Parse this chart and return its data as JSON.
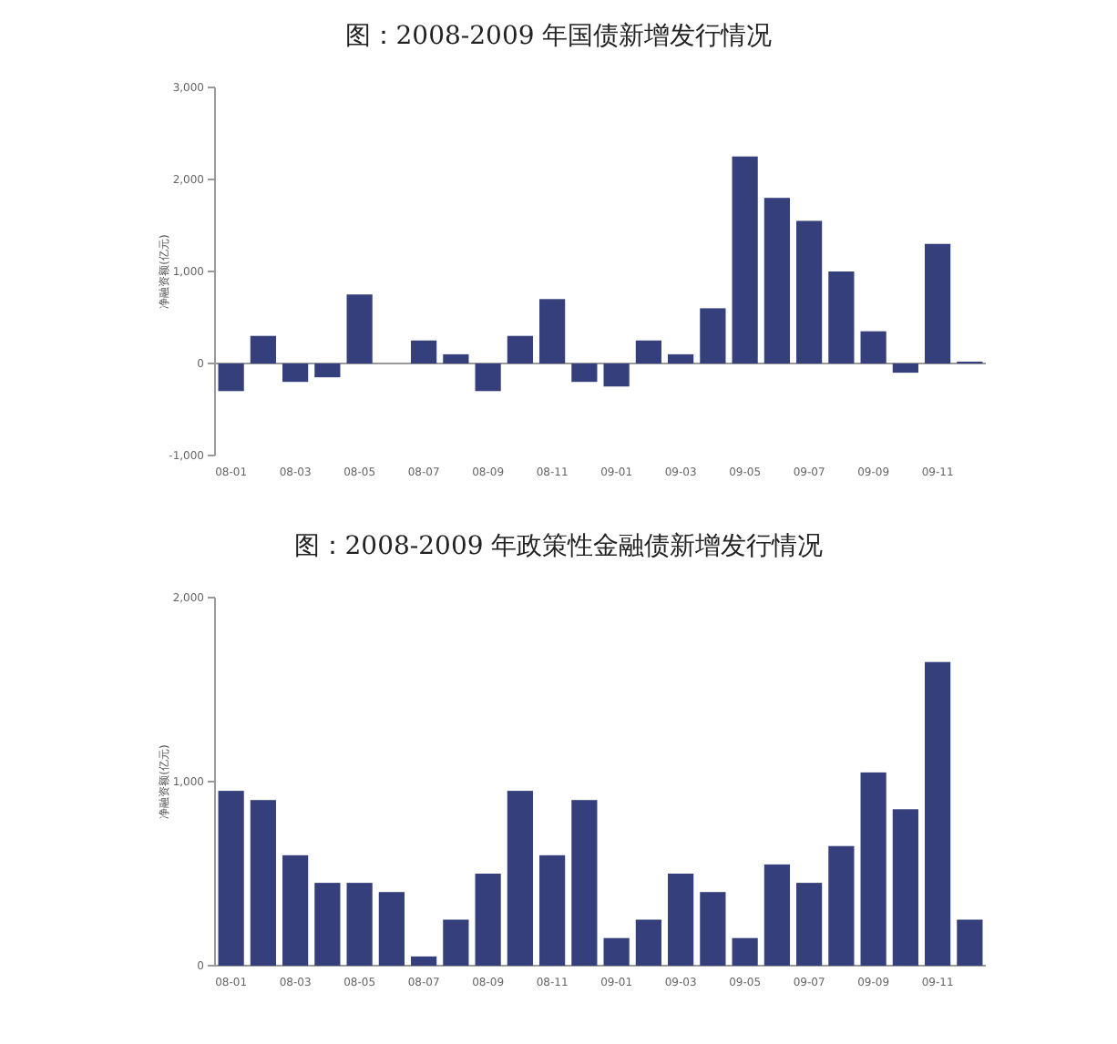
{
  "chart_data": [
    {
      "type": "bar",
      "title": "图：2008-2009 年国债新增发行情况",
      "ylabel": "净融资额(亿元)",
      "categories": [
        "08-01",
        null,
        "08-03",
        null,
        "08-05",
        null,
        "08-07",
        null,
        "08-09",
        null,
        "08-11",
        null,
        "09-01",
        null,
        "09-03",
        null,
        "09-05",
        null,
        "09-07",
        null,
        "09-09",
        null,
        "09-11",
        null
      ],
      "color": "#343f7c",
      "values": [
        -300,
        300,
        -200,
        -150,
        750,
        0,
        250,
        100,
        -300,
        300,
        700,
        -200,
        -250,
        250,
        100,
        600,
        2250,
        1800,
        1550,
        1000,
        350,
        -100,
        1300,
        20
      ],
      "ylim": [
        -1000,
        3000
      ],
      "yticks": [
        {
          "value": -1000,
          "label": "-1,000"
        },
        0,
        {
          "value": 1000,
          "label": "1,000"
        },
        {
          "value": 2000,
          "label": "2,000"
        },
        {
          "value": 3000,
          "label": "3,000"
        }
      ]
    },
    {
      "type": "bar",
      "title": "图：2008-2009 年政策性金融债新增发行情况",
      "ylabel": "净融资额(亿元)",
      "categories": [
        "08-01",
        null,
        "08-03",
        null,
        "08-05",
        null,
        "08-07",
        null,
        "08-09",
        null,
        "08-11",
        null,
        "09-01",
        null,
        "09-03",
        null,
        "09-05",
        null,
        "09-07",
        null,
        "09-09",
        null,
        "09-11",
        null
      ],
      "color": "#343f7c",
      "values": [
        950,
        900,
        600,
        450,
        450,
        400,
        50,
        250,
        500,
        950,
        600,
        900,
        150,
        250,
        500,
        400,
        150,
        550,
        450,
        650,
        1050,
        850,
        1650,
        250
      ],
      "ylim": [
        0,
        2000
      ],
      "yticks": [
        0,
        {
          "value": 1000,
          "label": "1,000"
        },
        {
          "value": 2000,
          "label": "2,000"
        }
      ]
    }
  ]
}
